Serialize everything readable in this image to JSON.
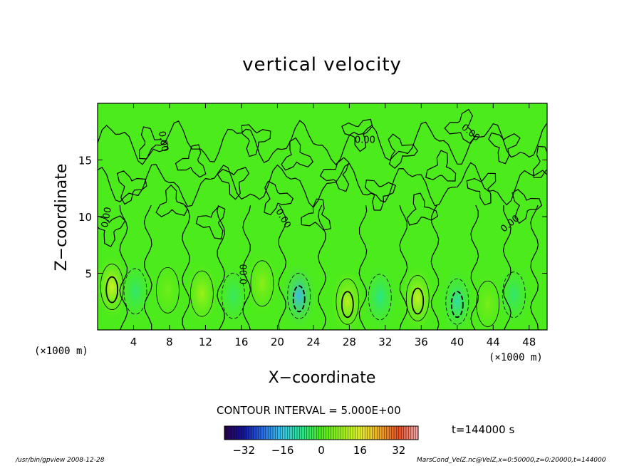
{
  "chart_data": {
    "type": "heatmap",
    "title": "vertical velocity",
    "xlabel": "X−coordinate",
    "ylabel": "Z−coordinate",
    "x_unit": "(×1000 m)",
    "x_unit_left": "(×1000 m)",
    "xlim": [
      0,
      50
    ],
    "ylim": [
      0,
      20
    ],
    "x_ticks": [
      4,
      8,
      12,
      16,
      20,
      24,
      28,
      32,
      36,
      40,
      44,
      48
    ],
    "y_ticks": [
      5,
      10,
      15
    ],
    "contour_interval_text": "CONTOUR INTERVAL = 5.000E+00",
    "contour_labels": [
      "0.00",
      "0.00",
      "0.00",
      "0.00",
      "0.00",
      "0.00",
      "0.00"
    ],
    "colorbar_ticks": [
      -32,
      -16,
      0,
      16,
      32
    ],
    "colorbar_range": [
      -40,
      40
    ],
    "cells": [
      {
        "x": 1.6,
        "z": 3.8,
        "value": 14
      },
      {
        "x": 4.2,
        "z": 3.4,
        "value": -6
      },
      {
        "x": 7.8,
        "z": 3.5,
        "value": 4
      },
      {
        "x": 11.6,
        "z": 3.2,
        "value": 9
      },
      {
        "x": 15.1,
        "z": 3.0,
        "value": -5
      },
      {
        "x": 18.3,
        "z": 4.1,
        "value": 7
      },
      {
        "x": 22.4,
        "z": 3.0,
        "value": -17
      },
      {
        "x": 27.8,
        "z": 2.5,
        "value": 12
      },
      {
        "x": 31.4,
        "z": 2.9,
        "value": -8
      },
      {
        "x": 35.6,
        "z": 2.8,
        "value": 13
      },
      {
        "x": 40.0,
        "z": 2.5,
        "value": -10
      },
      {
        "x": 43.4,
        "z": 2.3,
        "value": 5
      },
      {
        "x": 46.3,
        "z": 3.1,
        "value": -6
      }
    ],
    "time_label": "t=144000 s"
  },
  "colors": {
    "background_field": "#4ceb1c",
    "contour": "#000000"
  },
  "footer": {
    "left": "/usr/bin/gpview   2008-12-28",
    "right": "MarsCond_VelZ.nc@VelZ,x=0:50000,z=0:20000,t=144000"
  }
}
